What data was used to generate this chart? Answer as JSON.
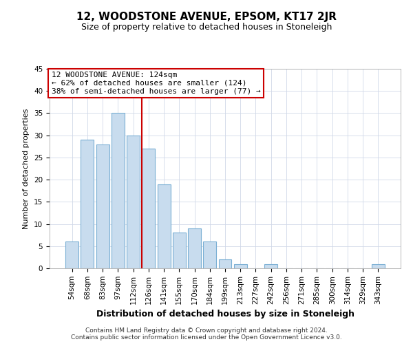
{
  "title": "12, WOODSTONE AVENUE, EPSOM, KT17 2JR",
  "subtitle": "Size of property relative to detached houses in Stoneleigh",
  "xlabel": "Distribution of detached houses by size in Stoneleigh",
  "ylabel": "Number of detached properties",
  "bar_labels": [
    "54sqm",
    "68sqm",
    "83sqm",
    "97sqm",
    "112sqm",
    "126sqm",
    "141sqm",
    "155sqm",
    "170sqm",
    "184sqm",
    "199sqm",
    "213sqm",
    "227sqm",
    "242sqm",
    "256sqm",
    "271sqm",
    "285sqm",
    "300sqm",
    "314sqm",
    "329sqm",
    "343sqm"
  ],
  "bar_values": [
    6,
    29,
    28,
    35,
    30,
    27,
    19,
    8,
    9,
    6,
    2,
    1,
    0,
    1,
    0,
    0,
    0,
    0,
    0,
    0,
    1
  ],
  "bar_color": "#c8dcee",
  "bar_edge_color": "#7aafd4",
  "marker_index": 5,
  "marker_color": "#cc0000",
  "ylim": [
    0,
    45
  ],
  "yticks": [
    0,
    5,
    10,
    15,
    20,
    25,
    30,
    35,
    40,
    45
  ],
  "annotation_title": "12 WOODSTONE AVENUE: 124sqm",
  "annotation_line1": "← 62% of detached houses are smaller (124)",
  "annotation_line2": "38% of semi-detached houses are larger (77) →",
  "annotation_box_color": "#ffffff",
  "annotation_box_edge": "#cc0000",
  "footer_line1": "Contains HM Land Registry data © Crown copyright and database right 2024.",
  "footer_line2": "Contains public sector information licensed under the Open Government Licence v3.0.",
  "grid_color": "#d0d8e8",
  "title_fontsize": 11,
  "subtitle_fontsize": 9,
  "xlabel_fontsize": 9,
  "ylabel_fontsize": 8,
  "tick_fontsize": 7.5,
  "annotation_fontsize": 8,
  "footer_fontsize": 6.5
}
